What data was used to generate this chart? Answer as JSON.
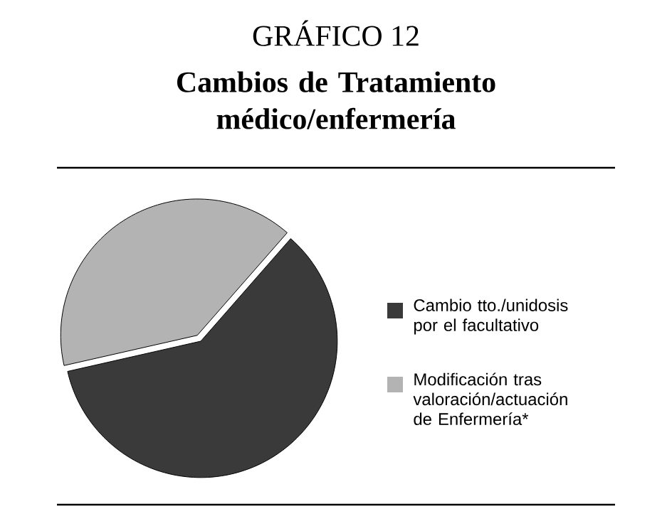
{
  "chart_data": {
    "type": "pie",
    "title": "Cambios de Tratamiento médico/enfermería",
    "annotations": [
      "GRÁFICO 12"
    ],
    "categories": [
      "Cambio tto./unidosis por el facultativo",
      "Modificación tras valoración/actuación de Enfermería*"
    ],
    "values": [
      60,
      40
    ],
    "colors": [
      "#3a3a3a",
      "#b3b3b3"
    ],
    "legend": "right"
  }
}
